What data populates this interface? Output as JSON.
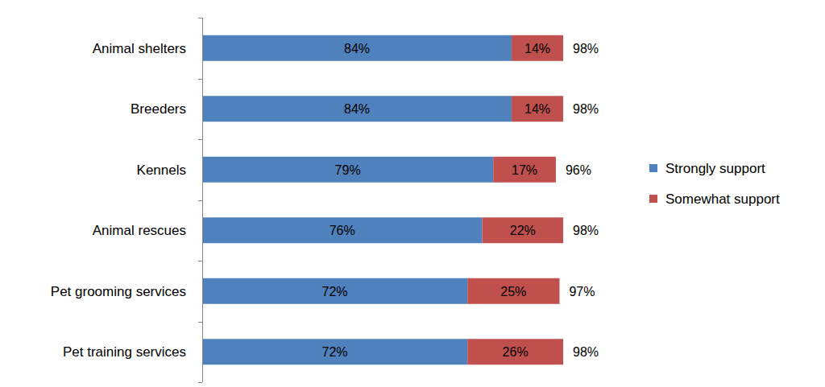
{
  "chart_data": {
    "type": "bar",
    "orientation": "horizontal",
    "stacked": true,
    "data_labels": true,
    "tick_labels": "y",
    "categories": [
      "Animal shelters",
      "Breeders",
      "Kennels",
      "Animal rescues",
      "Pet grooming services",
      "Pet training services"
    ],
    "xlim": [
      0,
      100
    ],
    "series": [
      {
        "name": "Strongly support",
        "color": "#4f81bd",
        "values": [
          84,
          84,
          79,
          76,
          72,
          72
        ],
        "value_labels": [
          "84%",
          "84%",
          "79%",
          "76%",
          "72%",
          "72%"
        ]
      },
      {
        "name": "Somewhat support",
        "color": "#c0504d",
        "values": [
          14,
          14,
          17,
          22,
          25,
          26
        ],
        "value_labels": [
          "14%",
          "14%",
          "17%",
          "22%",
          "25%",
          "26%"
        ]
      }
    ],
    "totals": [
      98,
      98,
      96,
      98,
      97,
      98
    ],
    "total_labels": [
      "98%",
      "98%",
      "96%",
      "98%",
      "97%",
      "98%"
    ],
    "legend": "right"
  }
}
